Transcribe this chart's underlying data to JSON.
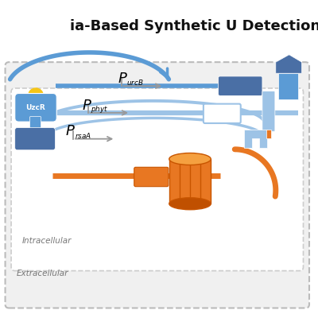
{
  "title": "ia-Based Synthetic U Detection",
  "bg_color": "#ffffff",
  "dashed_border_color": "#bbbbbb",
  "blue_dark": "#4a6fa5",
  "blue_mid": "#5b9bd5",
  "blue_light": "#9dc3e6",
  "blue_vlight": "#bdd7ee",
  "orange": "#e87722",
  "orange_dark": "#c85500",
  "yellow": "#f5c518",
  "label_uzc": "UzcR",
  "label_intracellular": "Intracellular",
  "label_extracellular": "Extracellular"
}
